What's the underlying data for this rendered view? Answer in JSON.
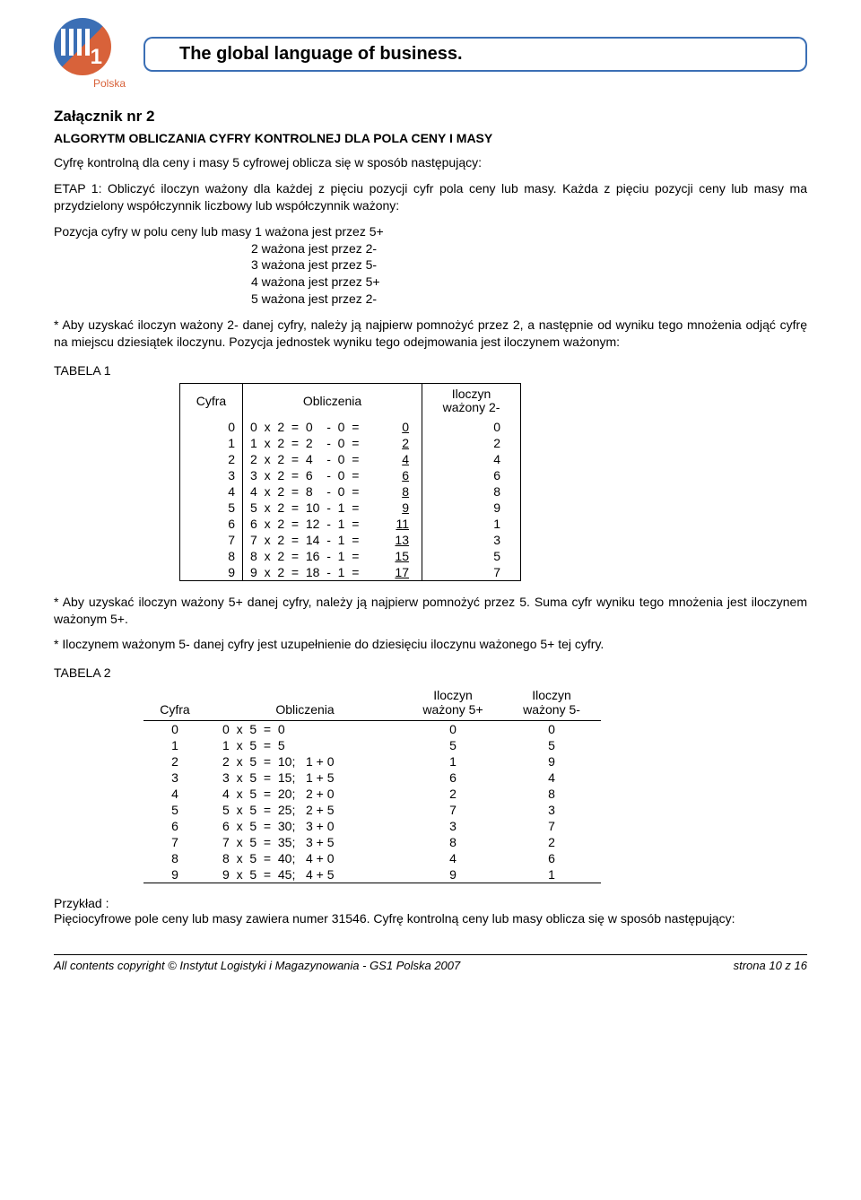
{
  "header": {
    "logo_label": "GS",
    "logo_number": "1",
    "logo_sub": "Polska",
    "tagline": "The global language of business."
  },
  "title": "Załącznik nr 2",
  "subtitle": "ALGORYTM OBLICZANIA CYFRY KONTROLNEJ DLA POLA CENY I MASY",
  "intro": "Cyfrę kontrolną dla ceny i masy 5 cyfrowej oblicza się w sposób następujący:",
  "etap1_label": "ETAP 1:",
  "etap1_text": " Obliczyć iloczyn ważony dla każdej z pięciu pozycji cyfr pola ceny lub masy. Każda z pięciu pozycji ceny lub masy ma przydzielony współczynnik liczbowy lub współczynnik ważony:",
  "weights_lead": "Pozycja cyfry w polu ceny lub masy 1 ważona jest przez 5+",
  "weights": [
    "2 ważona jest przez 2-",
    "3 ważona jest przez 5-",
    "4 ważona jest przez 5+",
    "5 ważona jest przez 2-"
  ],
  "note_2minus": "* Aby uzyskać iloczyn ważony 2- danej cyfry, należy ją najpierw pomnożyć przez 2, a następnie od wyniku tego mnożenia odjąć cyfrę na miejscu dziesiątek iloczynu. Pozycja jednostek wyniku tego odejmowania jest iloczynem ważonym:",
  "table1_label": "TABELA 1",
  "table1": {
    "headers": {
      "cyfra": "Cyfra",
      "oblicz": "Obliczenia",
      "iloczyn": "Iloczyn ważony 2-"
    },
    "rows": [
      {
        "c": "0",
        "calc": "0  x  2  =  0    -  0  =",
        "r": "0",
        "w": "0"
      },
      {
        "c": "1",
        "calc": "1  x  2  =  2    -  0  =",
        "r": "2",
        "w": "2"
      },
      {
        "c": "2",
        "calc": "2  x  2  =  4    -  0  =",
        "r": "4",
        "w": "4"
      },
      {
        "c": "3",
        "calc": "3  x  2  =  6    -  0  =",
        "r": "6",
        "w": "6"
      },
      {
        "c": "4",
        "calc": "4  x  2  =  8    -  0  =",
        "r": "8",
        "w": "8"
      },
      {
        "c": "5",
        "calc": "5  x  2  =  10  -  1  =",
        "r": "9",
        "w": "9"
      },
      {
        "c": "6",
        "calc": "6  x  2  =  12  -  1  =",
        "r": "11",
        "w": "1"
      },
      {
        "c": "7",
        "calc": "7  x  2  =  14  -  1  =",
        "r": "13",
        "w": "3"
      },
      {
        "c": "8",
        "calc": "8  x  2  =  16  -  1  =",
        "r": "15",
        "w": "5"
      },
      {
        "c": "9",
        "calc": "9  x  2  =  18  -  1  =",
        "r": "17",
        "w": "7"
      }
    ]
  },
  "note_5plus": "* Aby uzyskać iloczyn ważony 5+ danej cyfry, należy ją najpierw pomnożyć przez 5. Suma cyfr wyniku tego mnożenia jest iloczynem ważonym 5+.",
  "note_5minus": "* Iloczynem ważonym 5- danej cyfry jest uzupełnienie do dziesięciu iloczynu ważonego 5+ tej cyfry.",
  "table2_label": "TABELA 2",
  "table2": {
    "headers": {
      "cyfra": "Cyfra",
      "oblicz": "Obliczenia",
      "w5p": "Iloczyn ważony 5+",
      "w5m": "Iloczyn ważony 5-"
    },
    "rows": [
      {
        "c": "0",
        "calc": "0  x  5  =  0",
        "p": "0",
        "m": "0"
      },
      {
        "c": "1",
        "calc": "1  x  5  =  5",
        "p": "5",
        "m": "5"
      },
      {
        "c": "2",
        "calc": "2  x  5  =  10;   1 + 0",
        "p": "1",
        "m": "9"
      },
      {
        "c": "3",
        "calc": "3  x  5  =  15;   1 + 5",
        "p": "6",
        "m": "4"
      },
      {
        "c": "4",
        "calc": "4  x  5  =  20;   2 + 0",
        "p": "2",
        "m": "8"
      },
      {
        "c": "5",
        "calc": "5  x  5  =  25;   2 + 5",
        "p": "7",
        "m": "3"
      },
      {
        "c": "6",
        "calc": "6  x  5  =  30;   3 + 0",
        "p": "3",
        "m": "7"
      },
      {
        "c": "7",
        "calc": "7  x  5  =  35;   3 + 5",
        "p": "8",
        "m": "2"
      },
      {
        "c": "8",
        "calc": "8  x  5  =  40;   4 + 0",
        "p": "4",
        "m": "6"
      },
      {
        "c": "9",
        "calc": "9  x  5  =  45;   4 + 5",
        "p": "9",
        "m": "1"
      }
    ]
  },
  "example_label": "Przykład :",
  "example_text": "Pięciocyfrowe pole ceny lub masy zawiera numer 31546. Cyfrę kontrolną ceny lub masy oblicza się w sposób następujący:",
  "footer": {
    "left": "All contents copyright © Instytut Logistyki i Magazynowania - GS1 Polska 2007",
    "right": "strona 10 z 16"
  }
}
